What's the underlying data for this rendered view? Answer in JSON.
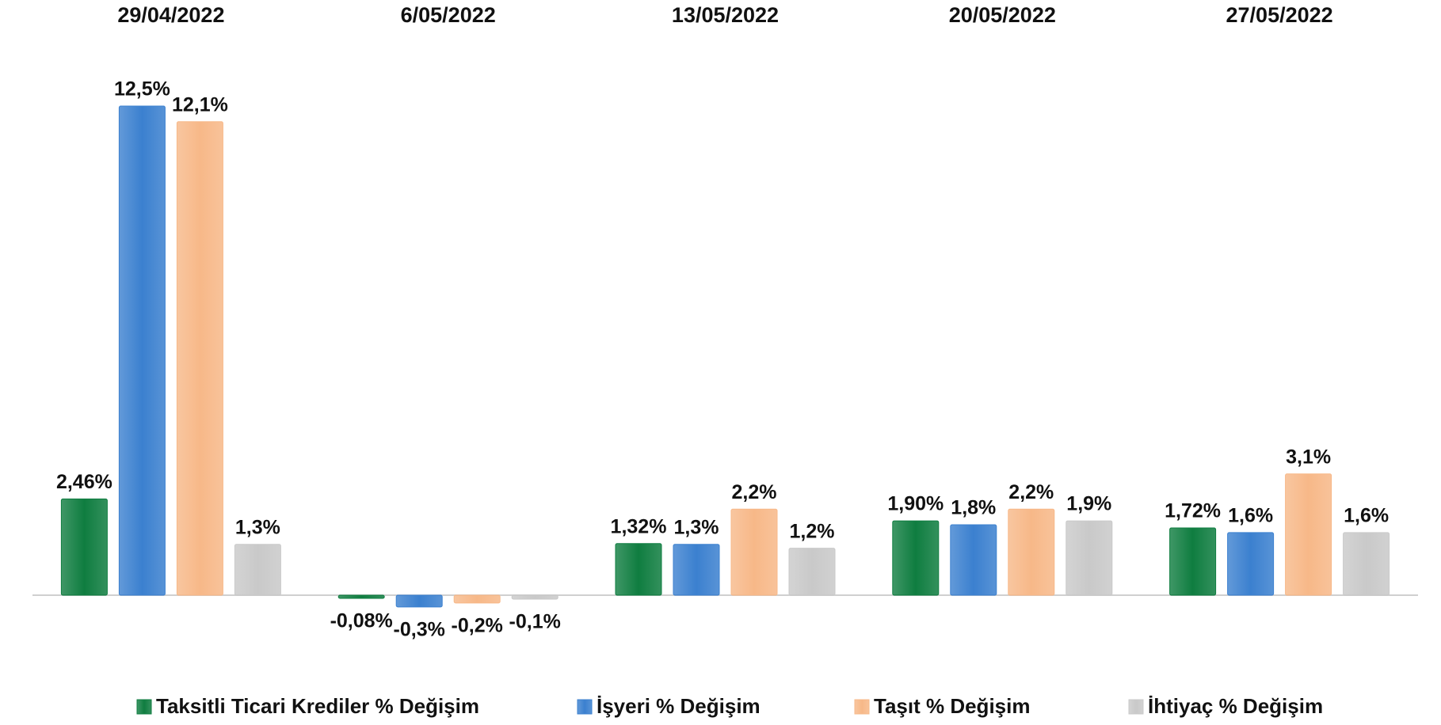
{
  "chart_data": {
    "type": "bar",
    "categories": [
      "29/04/2022",
      "6/05/2022",
      "13/05/2022",
      "20/05/2022",
      "27/05/2022"
    ],
    "series": [
      {
        "name": "Taksitli Ticari Krediler % Değişim",
        "color": "#0f7d40",
        "values": [
          2.46,
          -0.08,
          1.32,
          1.9,
          1.72
        ],
        "value_labels": [
          "2,46%",
          "-0,08%",
          "1,32%",
          "1,90%",
          "1,72%"
        ]
      },
      {
        "name": "İşyeri % Değişim",
        "color": "#3b80cf",
        "values": [
          12.5,
          -0.3,
          1.3,
          1.8,
          1.6
        ],
        "value_labels": [
          "12,5%",
          "-0,3%",
          "1,3%",
          "1,8%",
          "1,6%"
        ]
      },
      {
        "name": "Taşıt % Değişim",
        "color": "#f7b888",
        "values": [
          12.1,
          -0.2,
          2.2,
          2.2,
          3.1
        ],
        "value_labels": [
          "12,1%",
          "-0,2%",
          "2,2%",
          "2,2%",
          "3,1%"
        ]
      },
      {
        "name": "İhtiyaç % Değişim",
        "color": "#c9c9c9",
        "values": [
          1.3,
          -0.1,
          1.2,
          1.9,
          1.6
        ],
        "value_labels": [
          "1,3%",
          "-0,1%",
          "1,2%",
          "1,9%",
          "1,6%"
        ]
      }
    ]
  }
}
